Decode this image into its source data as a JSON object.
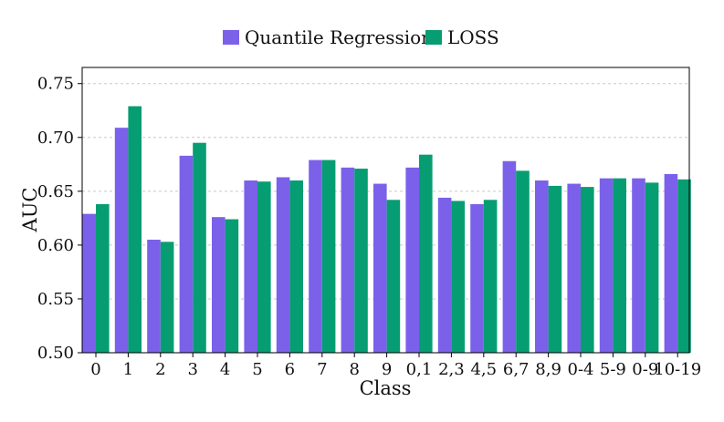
{
  "chart_data": {
    "type": "bar",
    "title": "",
    "xlabel": "Class",
    "ylabel": "AUC",
    "ylim": [
      0.5,
      0.765
    ],
    "yticks": [
      "0.50",
      "0.55",
      "0.60",
      "0.65",
      "0.70",
      "0.75"
    ],
    "grid": true,
    "legend_position": "top-center",
    "categories": [
      "0",
      "1",
      "2",
      "3",
      "4",
      "5",
      "6",
      "7",
      "8",
      "9",
      "0,1",
      "2,3",
      "4,5",
      "6,7",
      "8,9",
      "0-4",
      "5-9",
      "0-9",
      "10-19"
    ],
    "series": [
      {
        "name": "Quantile Regression",
        "color": "#7b61ea",
        "values": [
          0.629,
          0.709,
          0.605,
          0.683,
          0.626,
          0.66,
          0.663,
          0.679,
          0.672,
          0.657,
          0.672,
          0.644,
          0.638,
          0.678,
          0.66,
          0.657,
          0.662,
          0.662,
          0.666
        ]
      },
      {
        "name": "LOSS",
        "color": "#079d72",
        "values": [
          0.638,
          0.729,
          0.603,
          0.695,
          0.624,
          0.659,
          0.66,
          0.679,
          0.671,
          0.642,
          0.684,
          0.641,
          0.642,
          0.669,
          0.655,
          0.654,
          0.662,
          0.658,
          0.661
        ]
      }
    ]
  }
}
